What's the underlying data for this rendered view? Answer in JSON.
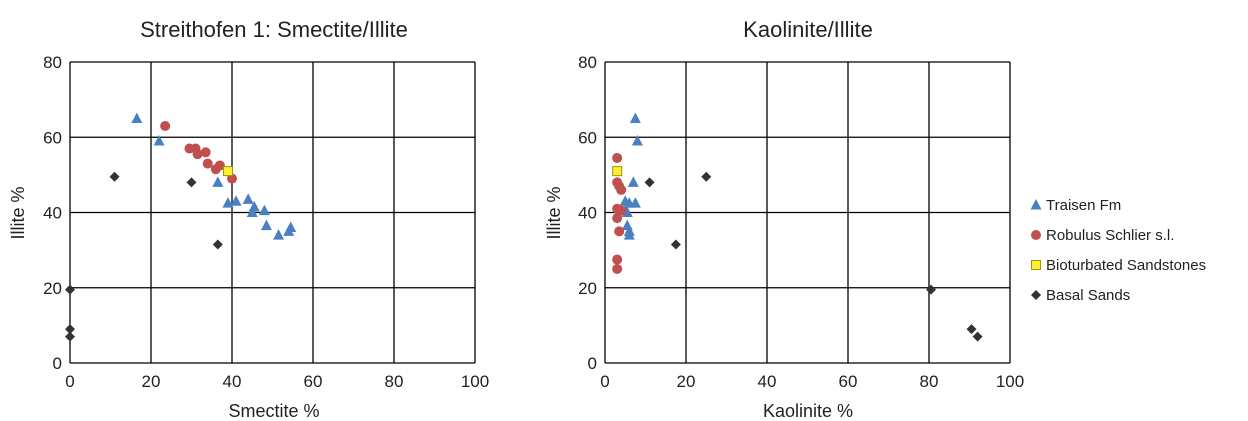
{
  "chart_data": [
    {
      "type": "scatter",
      "title": "Streithofen 1: Smectite/Illite",
      "xlabel": "Smectite %",
      "ylabel": "Illite %",
      "xlim": [
        0,
        100
      ],
      "ylim": [
        0,
        80
      ],
      "xticks": [
        "0",
        "20",
        "40",
        "60",
        "80",
        "100"
      ],
      "yticks": [
        "0",
        "20",
        "40",
        "60",
        "80"
      ],
      "grid": true,
      "series": [
        {
          "name": "Traisen Fm",
          "marker": "triangle",
          "color": "#4a7fc1",
          "points": [
            [
              16.5,
              65
            ],
            [
              22,
              59
            ],
            [
              36.5,
              48
            ],
            [
              39,
              42.5
            ],
            [
              41,
              43
            ],
            [
              44,
              43.5
            ],
            [
              45,
              40
            ],
            [
              45.5,
              41.5
            ],
            [
              48,
              40.5
            ],
            [
              48.5,
              36.5
            ],
            [
              51.5,
              34
            ],
            [
              54,
              35
            ],
            [
              54.5,
              36
            ]
          ]
        },
        {
          "name": "Robulus Schlier s.l.",
          "marker": "circle",
          "color": "#c0504d",
          "points": [
            [
              23.5,
              63
            ],
            [
              29.5,
              57
            ],
            [
              31,
              57
            ],
            [
              31.5,
              55.5
            ],
            [
              33.5,
              56
            ],
            [
              34,
              53
            ],
            [
              36,
              51.5
            ],
            [
              37,
              52.5
            ],
            [
              40,
              49
            ]
          ]
        },
        {
          "name": "Bioturbated Sandstones",
          "marker": "square",
          "color": "#ffee33",
          "points": [
            [
              39,
              51
            ]
          ]
        },
        {
          "name": "Basal Sands",
          "marker": "diamond",
          "color": "#333333",
          "points": [
            [
              11,
              49.5
            ],
            [
              30,
              48
            ],
            [
              36.5,
              31.5
            ],
            [
              0,
              19.5
            ],
            [
              0,
              9
            ],
            [
              0,
              7
            ]
          ]
        }
      ]
    },
    {
      "type": "scatter",
      "title": "Kaolinite/Illite",
      "xlabel": "Kaolinite %",
      "ylabel": "Illite %",
      "xlim": [
        0,
        100
      ],
      "ylim": [
        0,
        80
      ],
      "xticks": [
        "0",
        "20",
        "40",
        "60",
        "80",
        "100"
      ],
      "yticks": [
        "0",
        "20",
        "40",
        "60",
        "80"
      ],
      "grid": true,
      "series": [
        {
          "name": "Traisen Fm",
          "marker": "triangle",
          "color": "#4a7fc1",
          "points": [
            [
              7.5,
              65
            ],
            [
              8,
              59
            ],
            [
              7,
              48
            ],
            [
              5,
              43
            ],
            [
              6,
              42.5
            ],
            [
              7.5,
              42.5
            ],
            [
              5,
              40.5
            ],
            [
              5.5,
              40
            ],
            [
              5.5,
              36.5
            ],
            [
              6,
              35
            ],
            [
              6,
              34
            ]
          ]
        },
        {
          "name": "Robulus Schlier s.l.",
          "marker": "circle",
          "color": "#c0504d",
          "points": [
            [
              3,
              54.5
            ],
            [
              3,
              48
            ],
            [
              3.5,
              47
            ],
            [
              4,
              46
            ],
            [
              3,
              41
            ],
            [
              4,
              40.5
            ],
            [
              3,
              38.5
            ],
            [
              3.5,
              35
            ],
            [
              3,
              27.5
            ],
            [
              3,
              25
            ]
          ]
        },
        {
          "name": "Bioturbated Sandstones",
          "marker": "square",
          "color": "#ffee33",
          "points": [
            [
              3,
              51
            ]
          ]
        },
        {
          "name": "Basal Sands",
          "marker": "diamond",
          "color": "#333333",
          "points": [
            [
              25,
              49.5
            ],
            [
              11,
              48
            ],
            [
              17.5,
              31.5
            ],
            [
              80.5,
              19.5
            ],
            [
              90.5,
              9
            ],
            [
              92,
              7
            ]
          ]
        }
      ]
    }
  ],
  "legend": {
    "position": "right",
    "items": [
      {
        "label": "Traisen Fm",
        "marker": "triangle",
        "color": "#4a7fc1"
      },
      {
        "label": "Robulus Schlier s.l.",
        "marker": "circle",
        "color": "#c0504d"
      },
      {
        "label": "Bioturbated Sandstones",
        "marker": "square",
        "color": "#ffee33"
      },
      {
        "label": "Basal Sands",
        "marker": "diamond",
        "color": "#333333"
      }
    ]
  }
}
